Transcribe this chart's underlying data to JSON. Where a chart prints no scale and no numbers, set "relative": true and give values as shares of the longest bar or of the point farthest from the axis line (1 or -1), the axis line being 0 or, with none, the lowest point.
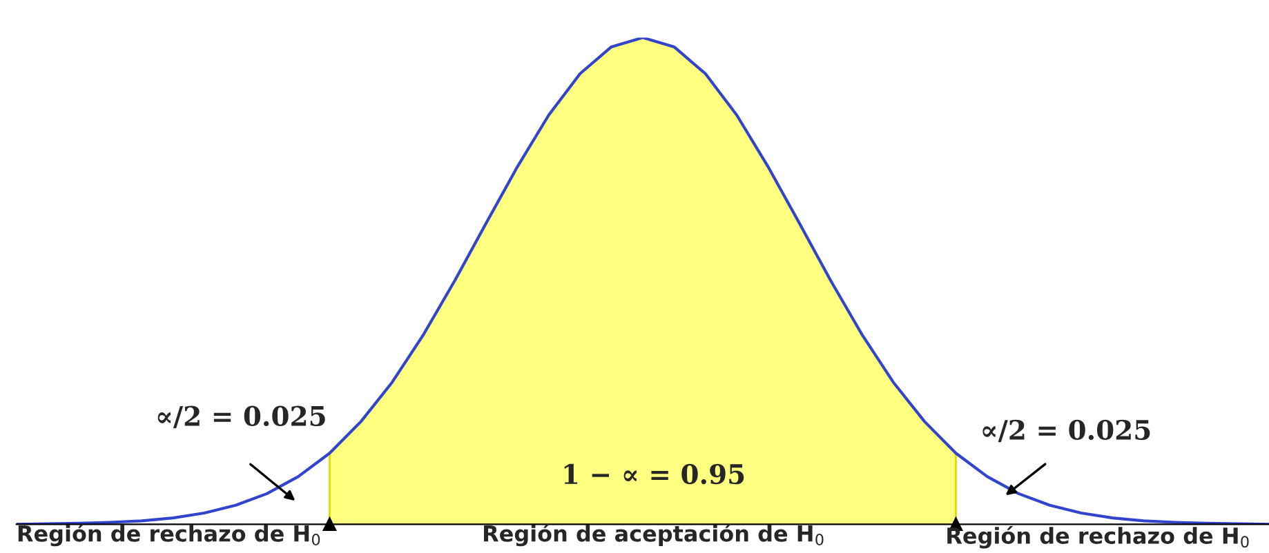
{
  "chart_data": {
    "type": "line",
    "relative": true,
    "categories": [
      null,
      null,
      null,
      null,
      null,
      null,
      null,
      null,
      null,
      null,
      null,
      null,
      null,
      null,
      null,
      null,
      null,
      null,
      null,
      null,
      null,
      null,
      null,
      null,
      null,
      null,
      null,
      null,
      null,
      null,
      null,
      null,
      null,
      null,
      null,
      null,
      null,
      null,
      null,
      null,
      null
    ],
    "series": [
      {
        "type": "area",
        "color": "#ffff80",
        "values": [
          null,
          null,
          null,
          null,
          null,
          null,
          null,
          null,
          null,
          null,
          0.146,
          0.211,
          0.292,
          0.39,
          0.501,
          0.619,
          0.735,
          0.841,
          0.926,
          0.981,
          1,
          0.981,
          0.926,
          0.841,
          0.735,
          0.619,
          0.501,
          0.39,
          0.292,
          0.211,
          0.146,
          null,
          null,
          null,
          null,
          null,
          null,
          null,
          null,
          null,
          null
        ]
      },
      {
        "color": "#3344cc",
        "values": [
          0,
          0.001,
          0.002,
          0.004,
          0.007,
          0.013,
          0.023,
          0.039,
          0.063,
          0.098,
          0.146,
          0.211,
          0.292,
          0.39,
          0.501,
          0.619,
          0.735,
          0.841,
          0.926,
          0.981,
          1,
          0.981,
          0.926,
          0.841,
          0.735,
          0.619,
          0.501,
          0.39,
          0.292,
          0.211,
          0.146,
          0.098,
          0.063,
          0.039,
          0.023,
          0.013,
          0.007,
          0.004,
          0.002,
          0.001,
          0
        ]
      }
    ],
    "annotations": [
      "Región de rechazo de H$_{0}$",
      "Región de aceptación de H$_{0}$",
      "Región de rechazo de H$_{0}$",
      "∝/2 = 0.025",
      "∝/2 = 0.025",
      "1 − ∝ = 0.95"
    ],
    "grid": false,
    "legend": false,
    "marker": "none",
    "line_style": "solid"
  }
}
